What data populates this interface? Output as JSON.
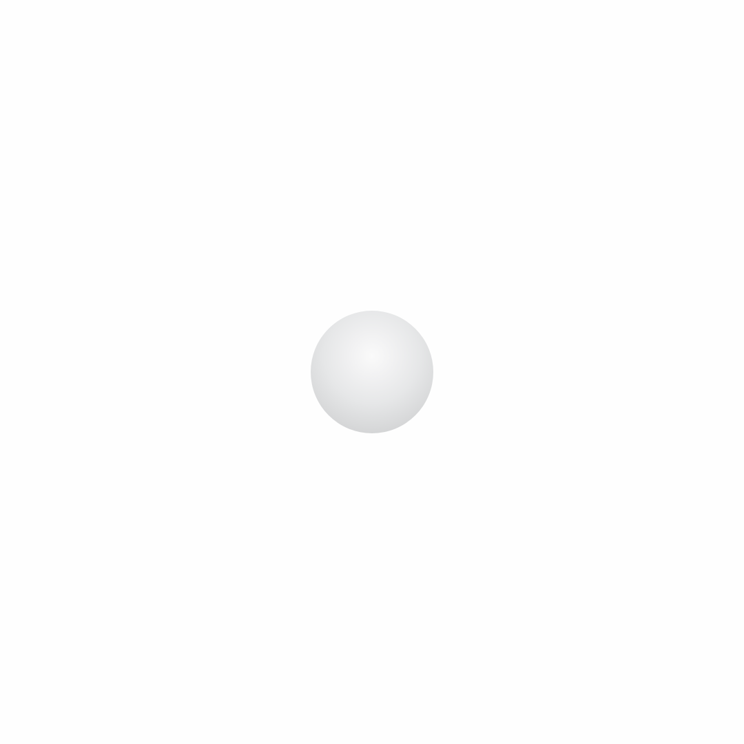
{
  "scene": {
    "background_color": "#fefefe",
    "sphere": {
      "icon": "sphere-icon",
      "highlight_color": "#fafafa",
      "mid_color": "#e6e7e8",
      "edge_color": "#c6c7c9"
    }
  }
}
